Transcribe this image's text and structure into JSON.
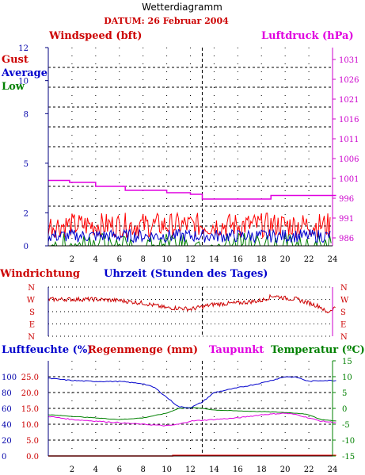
{
  "page_title": "Wetterdiagramm",
  "date_label": "DATUM: 26 Februar 2004",
  "chart_data": [
    {
      "id": "wind",
      "type": "line",
      "left_label": "Windspeed (bft)",
      "right_label": "Luftdruck (hPa)",
      "legend": [
        "Gust",
        "Average",
        "Low"
      ],
      "x_ticks": [
        2,
        4,
        6,
        8,
        10,
        12,
        14,
        16,
        18,
        20,
        22,
        24
      ],
      "xlim": [
        0,
        24
      ],
      "ylim_left": [
        0,
        12
      ],
      "y_ticks_left": [
        0,
        2,
        5,
        8,
        10,
        12
      ],
      "y_ticks_right": [
        986,
        991,
        996,
        1001,
        1006,
        1011,
        1016,
        1021,
        1026,
        1031
      ],
      "ylim_right": [
        984,
        1034
      ],
      "pressure": {
        "x": [
          0,
          1.8,
          1.8,
          4,
          4,
          6.5,
          6.5,
          10,
          10,
          12,
          12,
          13,
          13,
          18.8,
          18.8,
          24.3
        ],
        "y": [
          1000.5,
          1000.5,
          1000,
          1000,
          999,
          999,
          998,
          998,
          997.4,
          997.4,
          997,
          997,
          995.8,
          995.8,
          996.7,
          996.7
        ]
      },
      "gust_range": [
        0.5,
        2.0
      ],
      "avg_range": [
        0.2,
        1.0
      ],
      "low_range": [
        0,
        0.8
      ],
      "grid": true,
      "series_colors": {
        "gust": "#ff0000",
        "average": "#0000cc",
        "low": "#008000",
        "pressure": "#e000e0"
      }
    },
    {
      "id": "direction",
      "type": "line",
      "left_label": "Windrichtung",
      "center_label": "Uhrzeit (Stunden des Tages)",
      "direction_labels": [
        "N",
        "W",
        "S",
        "E",
        "N"
      ],
      "xlim": [
        0,
        24
      ],
      "direction": {
        "x": [
          0,
          2,
          4,
          6,
          8,
          10,
          11,
          12,
          13,
          14,
          16,
          18,
          19,
          20,
          21,
          22,
          23,
          23.5,
          24.3
        ],
        "y": [
          3.0,
          3.0,
          3.0,
          2.9,
          2.7,
          2.3,
          2.3,
          2.2,
          2.4,
          2.6,
          2.7,
          2.9,
          3.3,
          3.1,
          3.0,
          2.7,
          2.4,
          1.9,
          2.4
        ]
      }
    },
    {
      "id": "humidity",
      "type": "line",
      "labels": [
        "Luftfeuchte (%)",
        "Regenmenge (mm)",
        "Taupunkt",
        "Temperatur (ºC)"
      ],
      "x_ticks": [
        2,
        4,
        6,
        8,
        10,
        12,
        14,
        16,
        18,
        20,
        22,
        24
      ],
      "xlim": [
        0,
        24
      ],
      "y_ticks_humidity": [
        0,
        20,
        40,
        60,
        80,
        100
      ],
      "y_ticks_rain": [
        "0.0",
        "5.0",
        "10.0",
        "15.0",
        "20.0",
        "25.0"
      ],
      "y_ticks_temp": [
        -15,
        -10,
        -5,
        0,
        5,
        10,
        15
      ],
      "ylim_temp": [
        -15,
        15
      ],
      "humidity": {
        "x": [
          0,
          2,
          4,
          6,
          8,
          9,
          10,
          11,
          12,
          13,
          14,
          16,
          18,
          19,
          20,
          21,
          22,
          23,
          24.3
        ],
        "y": [
          9.5,
          8.8,
          8.5,
          8.5,
          7.8,
          6.5,
          3.5,
          0.5,
          0.2,
          2.0,
          5.0,
          6.5,
          8.0,
          9.0,
          10.0,
          9.8,
          8.5,
          8.8,
          8.8
        ]
      },
      "temperature": {
        "x": [
          0,
          2,
          4,
          6,
          8,
          10,
          11,
          12,
          13,
          14,
          16,
          18,
          20,
          21,
          22,
          23,
          24.3
        ],
        "y": [
          -2.0,
          -2.5,
          -3.0,
          -3.5,
          -3.0,
          -1.5,
          0.0,
          0.3,
          0.0,
          -0.5,
          -0.8,
          -1.0,
          -1.3,
          -1.5,
          -2.0,
          -3.5,
          -4.0
        ]
      },
      "dewpoint": {
        "x": [
          0,
          2,
          4,
          6,
          8,
          10,
          11,
          12,
          14,
          16,
          18,
          20,
          21,
          22,
          23,
          24.3
        ],
        "y": [
          -2.5,
          -3.5,
          -4.0,
          -4.5,
          -5.0,
          -5.5,
          -5.0,
          -4.0,
          -3.5,
          -3.0,
          -2.0,
          -1.5,
          -2.0,
          -3.0,
          -4.0,
          -4.5
        ]
      },
      "rain": {
        "x": [
          0,
          10.5,
          10.5,
          24.3
        ],
        "y": [
          0,
          0,
          0.5,
          0.5
        ]
      },
      "series_colors": {
        "humidity": "#0000cc",
        "rain": "#ff0000",
        "dewpoint": "#e000e0",
        "temperature": "#008000"
      }
    }
  ]
}
